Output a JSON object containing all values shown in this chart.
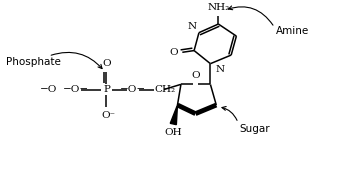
{
  "bg_color": "#ffffff",
  "line_color": "#000000",
  "fig_width": 3.48,
  "fig_height": 1.85,
  "dpi": 100,
  "xlim": [
    0,
    10
  ],
  "ylim": [
    0,
    5.3
  ],
  "phosphate_label": "Phosphate",
  "amine_label": "Amine",
  "sugar_label": "Sugar",
  "NH2_label": "NH₂",
  "O_top": "O",
  "O_minus": "O⁻",
  "minus_O_minus_left": "−O−",
  "minus_O_right": "−O−",
  "P_label": "P",
  "CH2_label": "CH₂",
  "O_ring_label": "O",
  "N_base1": "N",
  "N_base2": "N",
  "O_base": "O",
  "OH_label": "OH",
  "minus_O_left_text": "−O",
  "lw": 1.1,
  "lw_bold": 3.5,
  "fs": 7.5
}
